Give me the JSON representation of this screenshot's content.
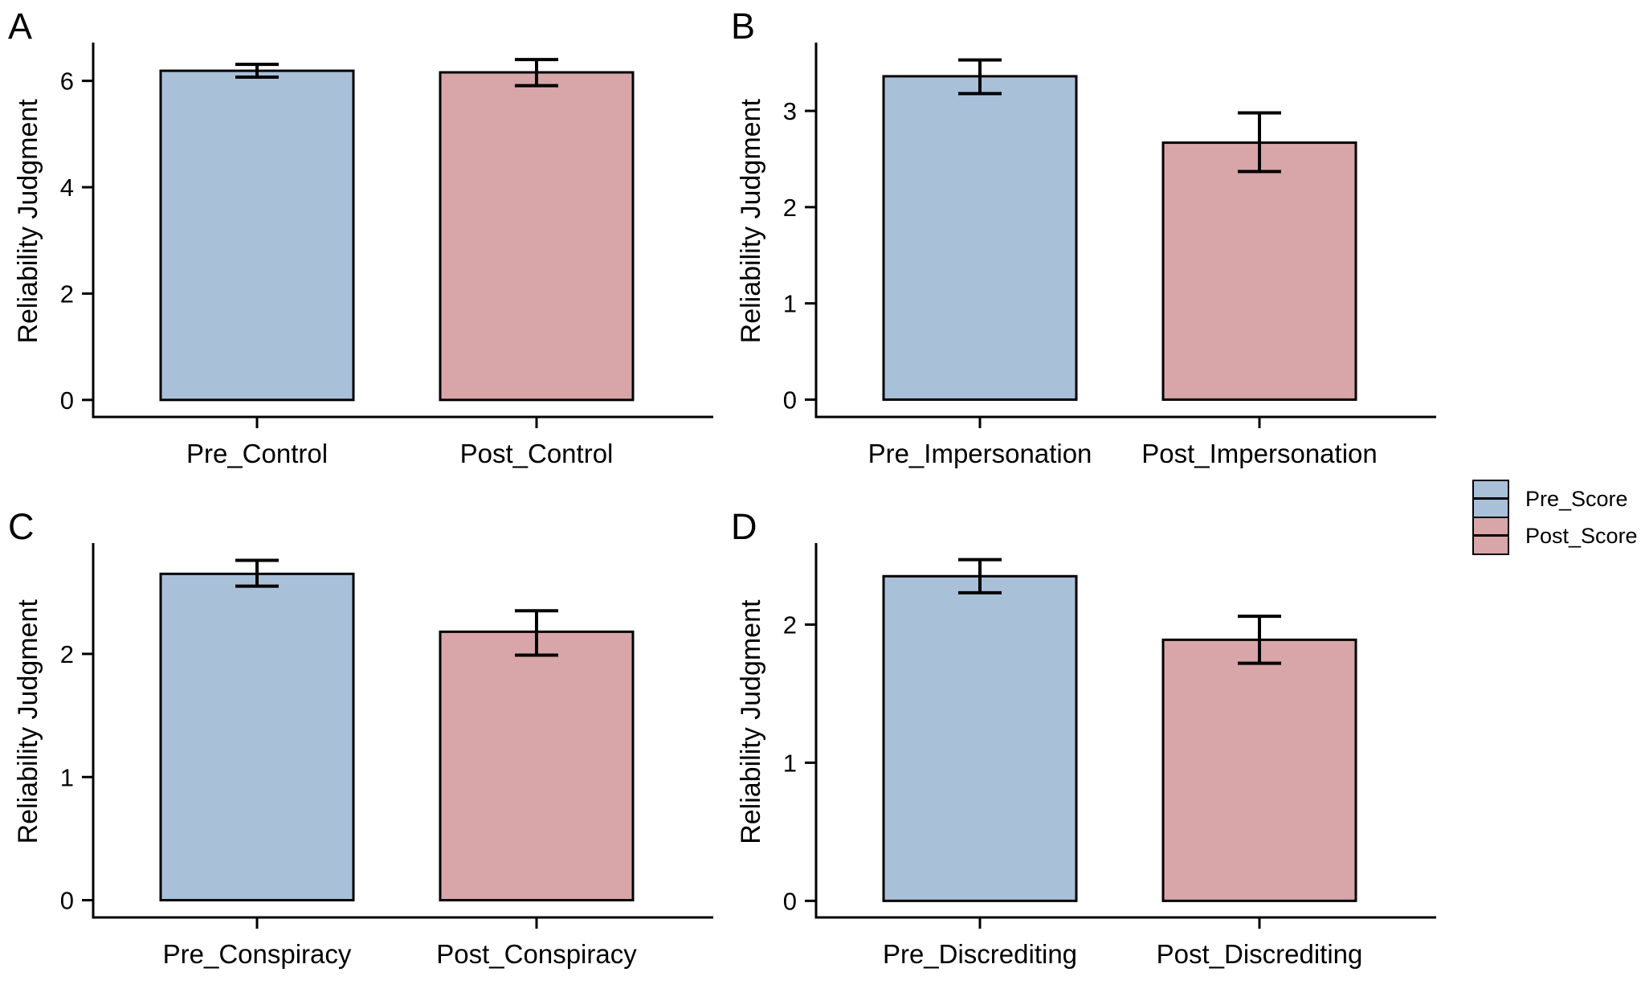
{
  "figure": {
    "ylabel": "Reliability Judgment",
    "background": "#ffffff",
    "axis_color": "#000000"
  },
  "colors": {
    "pre_fill": "#A9C0D9",
    "post_fill": "#D8A6A8",
    "stroke": "#000000"
  },
  "legend": {
    "position": "right-middle",
    "items": [
      {
        "label": "Pre_Score",
        "color": "#A9C0D9"
      },
      {
        "label": "Post_Score",
        "color": "#D8A6A8"
      }
    ]
  },
  "chart_data": [
    {
      "type": "bar",
      "panel_label": "A",
      "title": "",
      "xlabel": "",
      "ylabel": "Reliability Judgment",
      "categories": [
        "Pre_Control",
        "Post_Control"
      ],
      "series": [
        {
          "name": "Pre_Score",
          "value": 6.19,
          "ci": [
            6.07,
            6.31
          ]
        },
        {
          "name": "Post_Score",
          "value": 6.16,
          "ci": [
            5.91,
            6.4
          ]
        }
      ],
      "yticks": [
        0,
        2,
        4,
        6
      ],
      "ylim": [
        -0.32,
        6.72
      ],
      "grid": false
    },
    {
      "type": "bar",
      "panel_label": "B",
      "title": "",
      "xlabel": "",
      "ylabel": "Reliability Judgment",
      "categories": [
        "Pre_Impersonation",
        "Post_Impersonation"
      ],
      "series": [
        {
          "name": "Pre_Score",
          "value": 3.36,
          "ci": [
            3.18,
            3.53
          ]
        },
        {
          "name": "Post_Score",
          "value": 2.67,
          "ci": [
            2.37,
            2.98
          ]
        }
      ],
      "yticks": [
        0,
        1,
        2,
        3
      ],
      "ylim": [
        -0.18,
        3.71
      ],
      "grid": false
    },
    {
      "type": "bar",
      "panel_label": "C",
      "title": "",
      "xlabel": "",
      "ylabel": "Reliability Judgment",
      "categories": [
        "Pre_Conspiracy",
        "Post_Conspiracy"
      ],
      "series": [
        {
          "name": "Pre_Score",
          "value": 2.65,
          "ci": [
            2.55,
            2.76
          ]
        },
        {
          "name": "Post_Score",
          "value": 2.18,
          "ci": [
            1.99,
            2.35
          ]
        }
      ],
      "yticks": [
        0,
        1,
        2
      ],
      "ylim": [
        -0.14,
        2.9
      ],
      "grid": false
    },
    {
      "type": "bar",
      "panel_label": "D",
      "title": "",
      "xlabel": "",
      "ylabel": "Reliability Judgment",
      "categories": [
        "Pre_Discrediting",
        "Post_Discrediting"
      ],
      "series": [
        {
          "name": "Pre_Score",
          "value": 2.35,
          "ci": [
            2.23,
            2.47
          ]
        },
        {
          "name": "Post_Score",
          "value": 1.89,
          "ci": [
            1.72,
            2.06
          ]
        }
      ],
      "yticks": [
        0,
        1,
        2
      ],
      "ylim": [
        -0.12,
        2.59
      ],
      "grid": false
    }
  ]
}
